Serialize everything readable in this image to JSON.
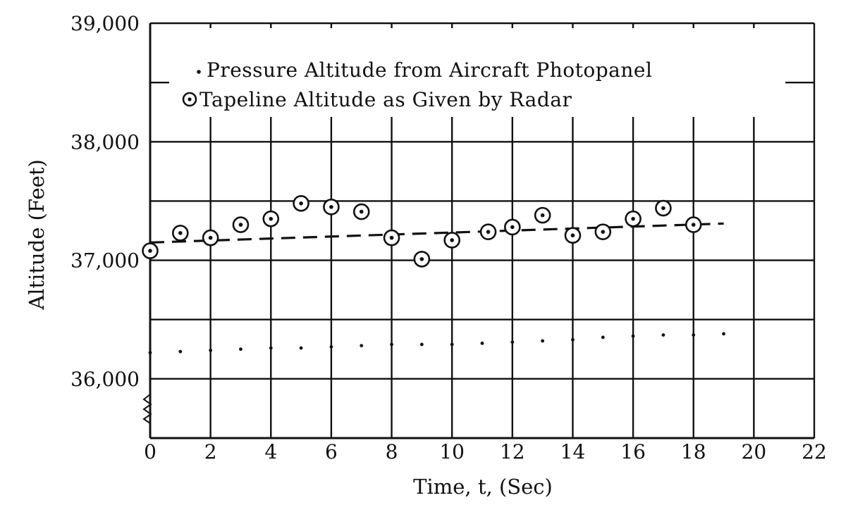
{
  "chart_data": {
    "type": "scatter",
    "title": "",
    "xlabel": "Time, t, (Sec)",
    "ylabel": "Altitude (Feet)",
    "xlim": [
      0,
      22
    ],
    "ylim": [
      35500,
      39000
    ],
    "x_ticks": [
      0,
      2,
      4,
      6,
      8,
      10,
      12,
      14,
      16,
      18,
      20,
      22
    ],
    "x_tick_labels": [
      "0",
      "2",
      "4",
      "6",
      "8",
      "10",
      "12",
      "14",
      "16",
      "18",
      "20",
      "22"
    ],
    "y_tick_labels": [
      {
        "value": 36000,
        "label": "36,000"
      },
      {
        "value": 37000,
        "label": "37,000"
      },
      {
        "value": 38000,
        "label": "38,000"
      },
      {
        "value": 39000,
        "label": "39,000"
      }
    ],
    "y_gridlines": [
      36000,
      36500,
      37000,
      37500,
      38000,
      38500,
      39000
    ],
    "grid": true,
    "legend_position": "top",
    "axis_break": "y-axis below 36,000",
    "series": [
      {
        "name": "Pressure Altitude from Aircraft Photopanel",
        "marker": "dot",
        "points": [
          {
            "x": 0,
            "y": 36220
          },
          {
            "x": 1,
            "y": 36230
          },
          {
            "x": 2,
            "y": 36240
          },
          {
            "x": 3,
            "y": 36250
          },
          {
            "x": 4,
            "y": 36260
          },
          {
            "x": 5,
            "y": 36260
          },
          {
            "x": 6,
            "y": 36270
          },
          {
            "x": 7,
            "y": 36280
          },
          {
            "x": 8,
            "y": 36290
          },
          {
            "x": 9,
            "y": 36290
          },
          {
            "x": 10,
            "y": 36290
          },
          {
            "x": 11,
            "y": 36300
          },
          {
            "x": 12,
            "y": 36310
          },
          {
            "x": 13,
            "y": 36320
          },
          {
            "x": 14,
            "y": 36330
          },
          {
            "x": 15,
            "y": 36350
          },
          {
            "x": 16,
            "y": 36360
          },
          {
            "x": 17,
            "y": 36370
          },
          {
            "x": 18,
            "y": 36370
          },
          {
            "x": 19,
            "y": 36380
          }
        ]
      },
      {
        "name": "Tapeline Altitude as Given by Radar",
        "marker": "circled-dot",
        "points": [
          {
            "x": 0,
            "y": 37080
          },
          {
            "x": 1,
            "y": 37230
          },
          {
            "x": 2,
            "y": 37190
          },
          {
            "x": 3,
            "y": 37300
          },
          {
            "x": 4,
            "y": 37350
          },
          {
            "x": 5,
            "y": 37480
          },
          {
            "x": 6,
            "y": 37450
          },
          {
            "x": 7,
            "y": 37410
          },
          {
            "x": 8,
            "y": 37190
          },
          {
            "x": 9,
            "y": 37010
          },
          {
            "x": 10,
            "y": 37170
          },
          {
            "x": 11.2,
            "y": 37240
          },
          {
            "x": 12,
            "y": 37280
          },
          {
            "x": 13,
            "y": 37380
          },
          {
            "x": 14,
            "y": 37210
          },
          {
            "x": 15,
            "y": 37240
          },
          {
            "x": 16,
            "y": 37350
          },
          {
            "x": 17,
            "y": 37440
          },
          {
            "x": 18,
            "y": 37300
          }
        ]
      }
    ],
    "fit_line": {
      "style": "dashed",
      "x": [
        0,
        19
      ],
      "y": [
        37150,
        37310
      ]
    }
  }
}
